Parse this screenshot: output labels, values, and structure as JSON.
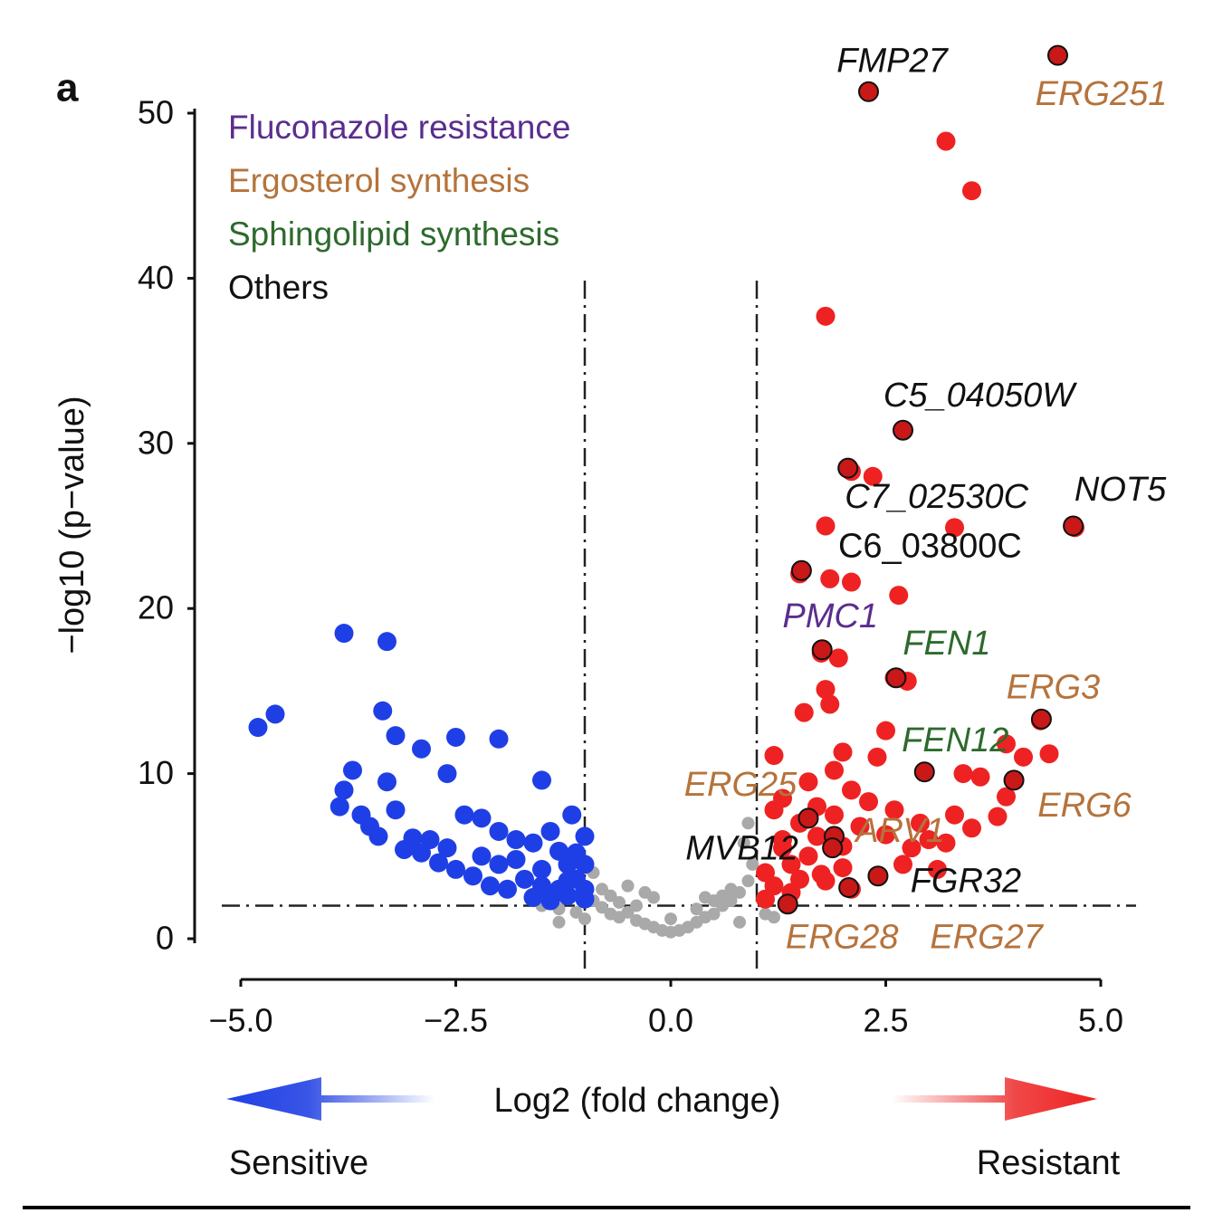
{
  "chart_data": {
    "type": "scatter",
    "panel_label": "a",
    "x_label": "Log2 (fold change)",
    "y_label": "−log10 (p−value)",
    "direction_labels": [
      "Sensitive",
      "Resistant"
    ],
    "xlim": [
      -5,
      5
    ],
    "ylim": [
      0,
      50
    ],
    "xticks": [
      {
        "value": -5,
        "label": "−5.0"
      },
      {
        "value": -2.5,
        "label": "−2.5"
      },
      {
        "value": 0,
        "label": "0.0"
      },
      {
        "value": 2.5,
        "label": "2.5"
      },
      {
        "value": 5,
        "label": "5.0"
      }
    ],
    "yticks": [
      0,
      10,
      20,
      30,
      40,
      50
    ],
    "thresholds": {
      "x": [
        -1,
        1
      ],
      "y": 2
    },
    "legend": [
      {
        "label": "Fluconazole resistance",
        "color": "#5b2d8e"
      },
      {
        "label": "Ergosterol synthesis",
        "color": "#b5733c"
      },
      {
        "label": "Sphingolipid synthesis",
        "color": "#2d6a2d"
      },
      {
        "label": "Others",
        "color": "#111111"
      }
    ],
    "series": [
      {
        "color": "#a9a9a9",
        "x": [
          -1.5,
          -1.3,
          -1.1,
          -0.9,
          -0.8,
          -0.7,
          -0.6,
          -0.5,
          -0.4,
          -0.3,
          -0.2,
          -0.1,
          0,
          0.1,
          0.2,
          0.3,
          0.4,
          0.5,
          0.6,
          0.7,
          0.8,
          0.9,
          0.95,
          0.85,
          0.9,
          0.7,
          0.6,
          0.5,
          -0.2,
          -0.3,
          -0.5,
          -0.9,
          -0.8,
          -0.4,
          0.3,
          0.0,
          -0.6,
          1.1,
          1.2,
          0.8,
          -1.0,
          -1.3,
          0.4,
          -0.7
        ],
        "values": [
          2.0,
          1.8,
          1.6,
          2.3,
          1.9,
          1.5,
          1.3,
          1.6,
          1.1,
          0.9,
          0.7,
          0.5,
          0.4,
          0.5,
          0.7,
          1.0,
          1.3,
          1.5,
          2.0,
          2.3,
          2.8,
          3.5,
          4.5,
          5.8,
          7.0,
          3.0,
          2.6,
          2.3,
          2.5,
          2.8,
          3.2,
          4.0,
          3.0,
          2.0,
          1.8,
          1.2,
          2.2,
          1.5,
          1.3,
          1.0,
          1.2,
          1.0,
          2.5,
          2.6
        ]
      },
      {
        "name": "Sensitive",
        "color": "#1f3fe6",
        "x": [
          -4.8,
          -4.6,
          -3.8,
          -3.3,
          -3.35,
          -3.2,
          -2.9,
          -2.5,
          -2.6,
          -2.0,
          -1.5,
          -3.7,
          -3.8,
          -3.85,
          -3.6,
          -3.3,
          -3.2,
          -3.0,
          -2.8,
          -2.9,
          -2.4,
          -2.2,
          -2.0,
          -1.8,
          -1.6,
          -1.4,
          -1.3,
          -1.2,
          -1.1,
          -1.0,
          -1.15,
          -1.0,
          -1.2,
          -1.5,
          -1.7,
          -1.9,
          -2.1,
          -2.3,
          -2.5,
          -2.7,
          -3.1,
          -3.5,
          -1.6,
          -1.4,
          -1.2,
          -1.0,
          -1.3,
          -1.5,
          -2.0,
          -2.2,
          -1.8,
          -1.0,
          -1.1,
          -2.6,
          -3.4
        ],
        "values": [
          12.8,
          13.6,
          18.5,
          18.0,
          13.8,
          12.3,
          11.5,
          12.2,
          10.0,
          12.1,
          9.6,
          10.2,
          9.0,
          8.0,
          7.5,
          9.5,
          7.8,
          6.1,
          6.0,
          5.2,
          7.5,
          7.3,
          6.5,
          6.0,
          5.8,
          6.5,
          5.3,
          4.5,
          3.6,
          3.0,
          7.5,
          6.2,
          3.5,
          4.2,
          3.6,
          3.0,
          3.2,
          3.8,
          4.2,
          4.6,
          5.4,
          6.8,
          2.5,
          2.3,
          2.6,
          2.4,
          3.0,
          3.2,
          4.5,
          5.0,
          4.8,
          4.5,
          5.2,
          5.5,
          6.2
        ]
      },
      {
        "name": "Resistant",
        "color": "#ee2222",
        "x": [
          2.3,
          4.5,
          3.2,
          3.5,
          1.8,
          2.7,
          2.1,
          2.35,
          1.8,
          3.3,
          4.7,
          1.5,
          1.85,
          2.1,
          2.65,
          1.75,
          1.95,
          1.8,
          1.85,
          1.55,
          2.6,
          2.75,
          2.5,
          2.4,
          2.0,
          1.9,
          1.6,
          1.3,
          1.2,
          2.95,
          3.4,
          3.6,
          3.9,
          4.1,
          4.4,
          4.0,
          3.8,
          4.3,
          3.9,
          3.3,
          2.1,
          2.3,
          2.6,
          2.9,
          3.0,
          3.2,
          1.3,
          1.5,
          1.7,
          1.9,
          2.2,
          2.5,
          2.8,
          1.4,
          1.6,
          1.2,
          1.4,
          1.8,
          2.1,
          2.4,
          1.1,
          1.1,
          1.36,
          2.07,
          1.88,
          1.6,
          1.75,
          2.0,
          2.7,
          3.1,
          1.3,
          1.5,
          1.7,
          2.0,
          3.5,
          1.2
        ],
        "values": [
          51.3,
          53.5,
          48.3,
          45.3,
          37.7,
          30.8,
          28.3,
          28.0,
          25.0,
          24.9,
          24.9,
          22.1,
          21.8,
          21.6,
          20.8,
          17.3,
          17.0,
          15.1,
          14.2,
          13.7,
          15.8,
          15.6,
          12.6,
          11.0,
          11.3,
          10.2,
          9.5,
          8.5,
          11.1,
          10.1,
          10.0,
          9.8,
          11.8,
          11.0,
          11.2,
          9.6,
          7.4,
          13.2,
          8.6,
          7.5,
          9.0,
          8.3,
          7.8,
          7.0,
          6.0,
          5.8,
          6.0,
          7.0,
          8.0,
          7.5,
          6.8,
          6.3,
          5.5,
          4.5,
          5.0,
          3.2,
          2.8,
          3.5,
          3.0,
          3.8,
          4.0,
          2.4,
          2.1,
          3.1,
          5.5,
          7.3,
          3.9,
          4.3,
          4.5,
          4.2,
          5.5,
          3.6,
          6.2,
          5.6,
          6.7,
          7.8
        ]
      }
    ],
    "annotations": [
      {
        "label": "FMP27",
        "x": 2.3,
        "y": 51.3,
        "group": 3
      },
      {
        "label": "ERG251",
        "x": 4.5,
        "y": 53.5,
        "group": 1
      },
      {
        "label": "C5_04050W",
        "x": 2.7,
        "y": 30.8,
        "group": 3
      },
      {
        "label": "C7_02530C",
        "x": 2.06,
        "y": 28.5,
        "group": 3
      },
      {
        "label": "NOT5",
        "x": 4.68,
        "y": 25.0,
        "group": 3
      },
      {
        "label": "C6_03800C",
        "x": 1.52,
        "y": 22.3,
        "group": 3
      },
      {
        "label": "PMC1",
        "x": 1.76,
        "y": 17.5,
        "group": 0
      },
      {
        "label": "FEN1",
        "x": 2.62,
        "y": 15.8,
        "group": 2
      },
      {
        "label": "ERG3",
        "x": 4.31,
        "y": 13.3,
        "group": 1
      },
      {
        "label": "FEN12",
        "x": 2.95,
        "y": 10.1,
        "group": 2
      },
      {
        "label": "ERG6",
        "x": 3.99,
        "y": 9.6,
        "group": 1
      },
      {
        "label": "ERG25",
        "x": 1.6,
        "y": 7.3,
        "group": 1
      },
      {
        "label": "ARV1",
        "x": 1.9,
        "y": 6.2,
        "group": 1
      },
      {
        "label": "MVB12",
        "x": 1.88,
        "y": 5.5,
        "group": 3
      },
      {
        "label": "FGR32",
        "x": 2.41,
        "y": 3.8,
        "group": 3
      },
      {
        "label": "ERG28",
        "x": 1.36,
        "y": 2.1,
        "group": 1
      },
      {
        "label": "ERG27",
        "x": 2.07,
        "y": 3.1,
        "group": 1
      }
    ]
  }
}
